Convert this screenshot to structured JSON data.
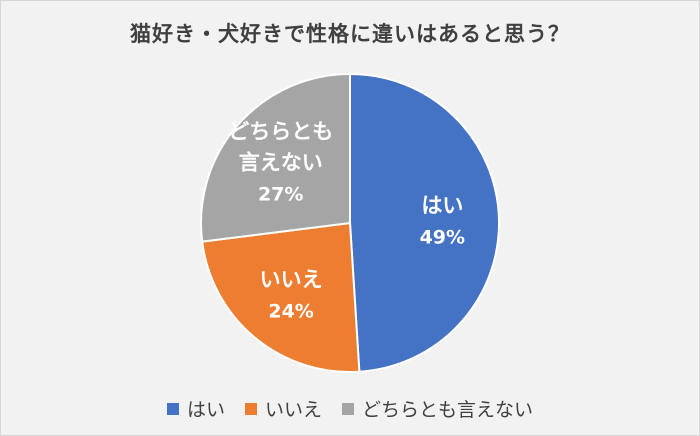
{
  "chart_data": {
    "type": "pie",
    "title": "猫好き・犬好きで性格に違いはあると思う？",
    "categories": [
      "はい",
      "いいえ",
      "どちらとも言えない"
    ],
    "values": [
      49,
      24,
      27
    ],
    "value_labels": [
      "49%",
      "24%",
      "27%"
    ],
    "slice_label_lines": [
      [
        "はい"
      ],
      [
        "いいえ"
      ],
      [
        "どちらとも",
        "言えない"
      ]
    ],
    "colors": [
      "#4472c4",
      "#ed7d31",
      "#a5a5a5"
    ],
    "start_angle_deg": 0,
    "direction": "clockwise",
    "legend": "bottom"
  }
}
